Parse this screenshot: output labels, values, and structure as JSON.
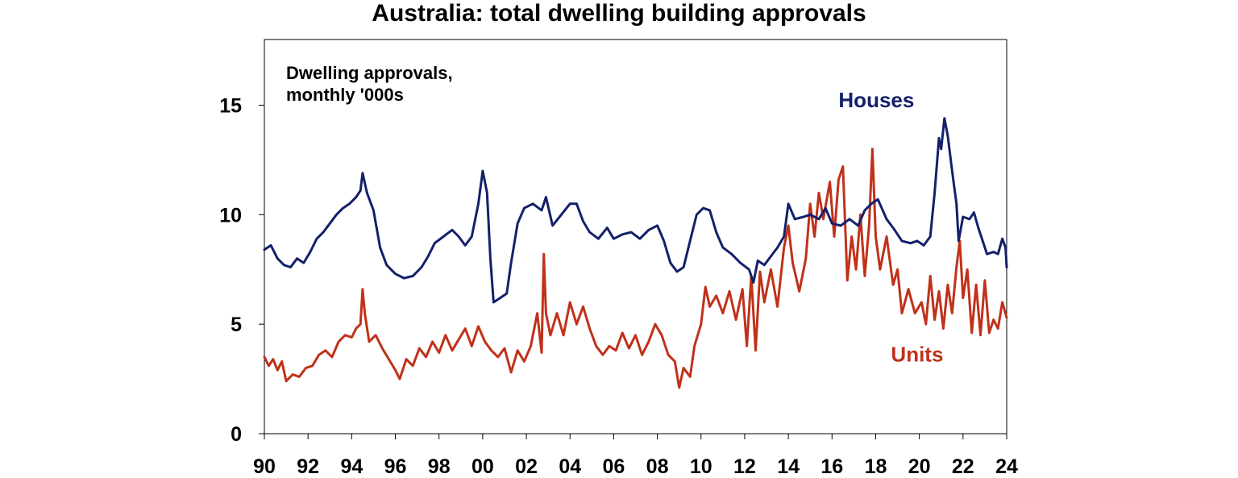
{
  "chart_data": {
    "type": "line",
    "title": "Australia: total dwelling building approvals",
    "annotation": [
      "Dwelling approvals,",
      "monthly '000s"
    ],
    "xlabel": "",
    "ylabel": "",
    "xlim": [
      1990,
      2024
    ],
    "ylim": [
      0,
      18
    ],
    "x_ticks": [
      1990,
      1992,
      1994,
      1996,
      1998,
      2000,
      2002,
      2004,
      2006,
      2008,
      2010,
      2012,
      2014,
      2016,
      2018,
      2020,
      2022,
      2024
    ],
    "x_tick_labels": [
      "90",
      "92",
      "94",
      "96",
      "98",
      "00",
      "02",
      "04",
      "06",
      "08",
      "10",
      "12",
      "14",
      "16",
      "18",
      "20",
      "22",
      "24"
    ],
    "y_ticks": [
      0,
      5,
      10,
      15
    ],
    "y_tick_labels": [
      "0",
      "5",
      "10",
      "15"
    ],
    "grid": false,
    "series": [
      {
        "name": "Houses",
        "color": "#14206b",
        "label_pos": [
          2016.3,
          14.9
        ],
        "points": [
          [
            1990.0,
            8.4
          ],
          [
            1990.3,
            8.6
          ],
          [
            1990.6,
            8.0
          ],
          [
            1990.9,
            7.7
          ],
          [
            1991.2,
            7.6
          ],
          [
            1991.5,
            8.0
          ],
          [
            1991.8,
            7.8
          ],
          [
            1992.1,
            8.3
          ],
          [
            1992.4,
            8.9
          ],
          [
            1992.7,
            9.2
          ],
          [
            1993.0,
            9.6
          ],
          [
            1993.3,
            10.0
          ],
          [
            1993.6,
            10.3
          ],
          [
            1993.9,
            10.5
          ],
          [
            1994.2,
            10.8
          ],
          [
            1994.4,
            11.1
          ],
          [
            1994.5,
            11.9
          ],
          [
            1994.7,
            11.0
          ],
          [
            1995.0,
            10.2
          ],
          [
            1995.3,
            8.5
          ],
          [
            1995.6,
            7.7
          ],
          [
            1996.0,
            7.3
          ],
          [
            1996.4,
            7.1
          ],
          [
            1996.8,
            7.2
          ],
          [
            1997.2,
            7.6
          ],
          [
            1997.5,
            8.1
          ],
          [
            1997.8,
            8.7
          ],
          [
            1998.2,
            9.0
          ],
          [
            1998.6,
            9.3
          ],
          [
            1998.9,
            9.0
          ],
          [
            1999.2,
            8.6
          ],
          [
            1999.5,
            9.0
          ],
          [
            1999.8,
            10.5
          ],
          [
            2000.0,
            12.0
          ],
          [
            2000.2,
            11.0
          ],
          [
            2000.35,
            8.0
          ],
          [
            2000.5,
            6.0
          ],
          [
            2000.8,
            6.2
          ],
          [
            2001.1,
            6.4
          ],
          [
            2001.3,
            7.8
          ],
          [
            2001.6,
            9.6
          ],
          [
            2001.9,
            10.3
          ],
          [
            2002.3,
            10.5
          ],
          [
            2002.7,
            10.2
          ],
          [
            2002.9,
            10.8
          ],
          [
            2003.2,
            9.5
          ],
          [
            2003.6,
            10.0
          ],
          [
            2004.0,
            10.5
          ],
          [
            2004.3,
            10.5
          ],
          [
            2004.6,
            9.7
          ],
          [
            2004.9,
            9.2
          ],
          [
            2005.3,
            8.9
          ],
          [
            2005.7,
            9.4
          ],
          [
            2006.0,
            8.9
          ],
          [
            2006.4,
            9.1
          ],
          [
            2006.8,
            9.2
          ],
          [
            2007.2,
            8.9
          ],
          [
            2007.6,
            9.3
          ],
          [
            2008.0,
            9.5
          ],
          [
            2008.3,
            8.8
          ],
          [
            2008.6,
            7.8
          ],
          [
            2008.9,
            7.4
          ],
          [
            2009.2,
            7.6
          ],
          [
            2009.5,
            8.8
          ],
          [
            2009.8,
            10.0
          ],
          [
            2010.1,
            10.3
          ],
          [
            2010.4,
            10.2
          ],
          [
            2010.7,
            9.2
          ],
          [
            2011.0,
            8.5
          ],
          [
            2011.4,
            8.2
          ],
          [
            2011.8,
            7.8
          ],
          [
            2012.2,
            7.5
          ],
          [
            2012.4,
            6.9
          ],
          [
            2012.6,
            7.9
          ],
          [
            2012.9,
            7.7
          ],
          [
            2013.2,
            8.1
          ],
          [
            2013.5,
            8.5
          ],
          [
            2013.8,
            9.0
          ],
          [
            2014.0,
            10.5
          ],
          [
            2014.3,
            9.8
          ],
          [
            2014.7,
            9.9
          ],
          [
            2015.0,
            10.0
          ],
          [
            2015.4,
            9.8
          ],
          [
            2015.7,
            10.3
          ],
          [
            2016.0,
            9.6
          ],
          [
            2016.4,
            9.5
          ],
          [
            2016.8,
            9.8
          ],
          [
            2017.2,
            9.5
          ],
          [
            2017.5,
            10.2
          ],
          [
            2017.8,
            10.5
          ],
          [
            2018.1,
            10.7
          ],
          [
            2018.5,
            9.8
          ],
          [
            2018.8,
            9.4
          ],
          [
            2019.2,
            8.8
          ],
          [
            2019.6,
            8.7
          ],
          [
            2019.9,
            8.8
          ],
          [
            2020.2,
            8.6
          ],
          [
            2020.5,
            9.0
          ],
          [
            2020.7,
            11.0
          ],
          [
            2020.9,
            13.5
          ],
          [
            2021.0,
            13.0
          ],
          [
            2021.15,
            14.4
          ],
          [
            2021.3,
            13.6
          ],
          [
            2021.5,
            12.0
          ],
          [
            2021.7,
            10.5
          ],
          [
            2021.8,
            8.8
          ],
          [
            2022.0,
            9.9
          ],
          [
            2022.3,
            9.8
          ],
          [
            2022.5,
            10.1
          ],
          [
            2022.7,
            9.4
          ],
          [
            2022.9,
            8.8
          ],
          [
            2023.1,
            8.2
          ],
          [
            2023.4,
            8.3
          ],
          [
            2023.6,
            8.2
          ],
          [
            2023.8,
            8.9
          ],
          [
            2023.95,
            8.5
          ],
          [
            2024.0,
            7.6
          ]
        ]
      },
      {
        "name": "Units",
        "color": "#c0311a",
        "label_pos": [
          2018.7,
          3.3
        ],
        "points": [
          [
            1990.0,
            3.5
          ],
          [
            1990.2,
            3.1
          ],
          [
            1990.4,
            3.4
          ],
          [
            1990.6,
            2.9
          ],
          [
            1990.8,
            3.3
          ],
          [
            1991.0,
            2.4
          ],
          [
            1991.3,
            2.7
          ],
          [
            1991.6,
            2.6
          ],
          [
            1991.9,
            3.0
          ],
          [
            1992.2,
            3.1
          ],
          [
            1992.5,
            3.6
          ],
          [
            1992.8,
            3.8
          ],
          [
            1993.1,
            3.5
          ],
          [
            1993.4,
            4.2
          ],
          [
            1993.7,
            4.5
          ],
          [
            1994.0,
            4.4
          ],
          [
            1994.2,
            4.8
          ],
          [
            1994.4,
            5.0
          ],
          [
            1994.5,
            6.6
          ],
          [
            1994.6,
            5.5
          ],
          [
            1994.8,
            4.2
          ],
          [
            1995.1,
            4.5
          ],
          [
            1995.4,
            3.9
          ],
          [
            1995.7,
            3.4
          ],
          [
            1996.0,
            2.9
          ],
          [
            1996.2,
            2.5
          ],
          [
            1996.5,
            3.4
          ],
          [
            1996.8,
            3.1
          ],
          [
            1997.1,
            3.9
          ],
          [
            1997.4,
            3.5
          ],
          [
            1997.7,
            4.2
          ],
          [
            1998.0,
            3.7
          ],
          [
            1998.3,
            4.5
          ],
          [
            1998.6,
            3.8
          ],
          [
            1998.9,
            4.3
          ],
          [
            1999.2,
            4.8
          ],
          [
            1999.5,
            4.0
          ],
          [
            1999.8,
            4.9
          ],
          [
            2000.1,
            4.2
          ],
          [
            2000.4,
            3.8
          ],
          [
            2000.7,
            3.5
          ],
          [
            2001.0,
            3.9
          ],
          [
            2001.3,
            2.8
          ],
          [
            2001.6,
            3.8
          ],
          [
            2001.9,
            3.3
          ],
          [
            2002.2,
            4.0
          ],
          [
            2002.5,
            5.5
          ],
          [
            2002.7,
            3.7
          ],
          [
            2002.8,
            8.2
          ],
          [
            2002.9,
            5.5
          ],
          [
            2003.1,
            4.5
          ],
          [
            2003.4,
            5.5
          ],
          [
            2003.7,
            4.5
          ],
          [
            2004.0,
            6.0
          ],
          [
            2004.3,
            5.0
          ],
          [
            2004.6,
            5.8
          ],
          [
            2004.9,
            4.8
          ],
          [
            2005.2,
            4.0
          ],
          [
            2005.5,
            3.6
          ],
          [
            2005.8,
            4.0
          ],
          [
            2006.1,
            3.8
          ],
          [
            2006.4,
            4.6
          ],
          [
            2006.7,
            3.9
          ],
          [
            2007.0,
            4.5
          ],
          [
            2007.3,
            3.6
          ],
          [
            2007.6,
            4.2
          ],
          [
            2007.9,
            5.0
          ],
          [
            2008.2,
            4.5
          ],
          [
            2008.5,
            3.6
          ],
          [
            2008.8,
            3.3
          ],
          [
            2009.0,
            2.1
          ],
          [
            2009.2,
            3.0
          ],
          [
            2009.5,
            2.6
          ],
          [
            2009.7,
            4.0
          ],
          [
            2010.0,
            5.0
          ],
          [
            2010.2,
            6.7
          ],
          [
            2010.4,
            5.8
          ],
          [
            2010.7,
            6.3
          ],
          [
            2011.0,
            5.5
          ],
          [
            2011.3,
            6.5
          ],
          [
            2011.6,
            5.2
          ],
          [
            2011.9,
            6.6
          ],
          [
            2012.1,
            4.0
          ],
          [
            2012.3,
            7.2
          ],
          [
            2012.5,
            3.8
          ],
          [
            2012.7,
            7.4
          ],
          [
            2012.9,
            6.0
          ],
          [
            2013.2,
            7.5
          ],
          [
            2013.5,
            5.8
          ],
          [
            2013.8,
            8.5
          ],
          [
            2014.0,
            9.5
          ],
          [
            2014.2,
            7.8
          ],
          [
            2014.5,
            6.5
          ],
          [
            2014.8,
            8.0
          ],
          [
            2015.0,
            10.5
          ],
          [
            2015.2,
            9.0
          ],
          [
            2015.4,
            11.0
          ],
          [
            2015.6,
            9.8
          ],
          [
            2015.9,
            11.5
          ],
          [
            2016.1,
            9.0
          ],
          [
            2016.3,
            11.6
          ],
          [
            2016.5,
            12.2
          ],
          [
            2016.7,
            7.0
          ],
          [
            2016.9,
            9.0
          ],
          [
            2017.1,
            7.5
          ],
          [
            2017.3,
            10.0
          ],
          [
            2017.5,
            7.2
          ],
          [
            2017.7,
            9.5
          ],
          [
            2017.85,
            13.0
          ],
          [
            2018.0,
            9.0
          ],
          [
            2018.2,
            7.5
          ],
          [
            2018.5,
            9.0
          ],
          [
            2018.8,
            6.8
          ],
          [
            2019.0,
            7.5
          ],
          [
            2019.2,
            5.5
          ],
          [
            2019.5,
            6.6
          ],
          [
            2019.8,
            5.5
          ],
          [
            2020.1,
            6.0
          ],
          [
            2020.3,
            5.0
          ],
          [
            2020.5,
            7.2
          ],
          [
            2020.7,
            5.2
          ],
          [
            2020.9,
            6.5
          ],
          [
            2021.1,
            4.8
          ],
          [
            2021.3,
            6.8
          ],
          [
            2021.5,
            5.5
          ],
          [
            2021.7,
            7.6
          ],
          [
            2021.85,
            8.8
          ],
          [
            2022.0,
            6.2
          ],
          [
            2022.2,
            7.5
          ],
          [
            2022.4,
            4.6
          ],
          [
            2022.6,
            6.8
          ],
          [
            2022.8,
            4.5
          ],
          [
            2023.0,
            7.0
          ],
          [
            2023.2,
            4.6
          ],
          [
            2023.4,
            5.2
          ],
          [
            2023.6,
            4.8
          ],
          [
            2023.8,
            6.0
          ],
          [
            2024.0,
            5.3
          ]
        ]
      }
    ]
  }
}
